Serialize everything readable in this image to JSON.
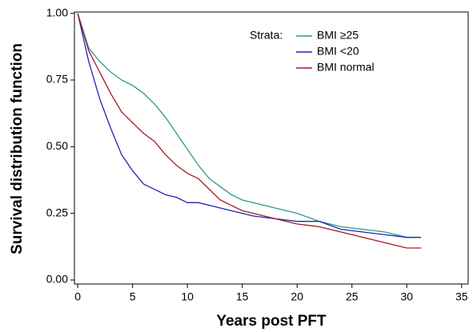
{
  "chart_data": {
    "type": "line",
    "xlabel": "Years post PFT",
    "ylabel": "Survival distribution function",
    "legend_title": "Strata:",
    "legend": "top-right",
    "x": [
      0,
      1,
      2,
      3,
      4,
      5,
      6,
      7,
      8,
      9,
      10,
      11,
      12,
      13,
      14,
      15,
      16,
      18,
      20,
      22,
      24,
      26,
      28,
      30,
      31.3
    ],
    "series": [
      {
        "name": "BMI ≥25",
        "color": "#2e9a8a",
        "values": [
          1.0,
          0.87,
          0.82,
          0.78,
          0.75,
          0.73,
          0.7,
          0.66,
          0.61,
          0.55,
          0.49,
          0.43,
          0.38,
          0.35,
          0.32,
          0.3,
          0.29,
          0.27,
          0.25,
          0.22,
          0.2,
          0.19,
          0.18,
          0.16,
          0.16
        ]
      },
      {
        "name": "BMI <20",
        "color": "#2424b4",
        "values": [
          1.0,
          0.82,
          0.68,
          0.57,
          0.47,
          0.41,
          0.36,
          0.34,
          0.32,
          0.31,
          0.29,
          0.29,
          0.28,
          0.27,
          0.26,
          0.25,
          0.24,
          0.23,
          0.22,
          0.22,
          0.19,
          0.18,
          0.17,
          0.16,
          0.16
        ]
      },
      {
        "name": "BMI normal",
        "color": "#a01c20",
        "values": [
          1.0,
          0.86,
          0.78,
          0.7,
          0.63,
          0.59,
          0.55,
          0.52,
          0.47,
          0.43,
          0.4,
          0.38,
          0.34,
          0.3,
          0.28,
          0.26,
          0.25,
          0.23,
          0.21,
          0.2,
          0.18,
          0.16,
          0.14,
          0.12,
          0.12
        ]
      }
    ],
    "xlim": [
      -0.3,
      35.6
    ],
    "ylim": [
      -0.015,
      1.005
    ],
    "xticks": [
      0,
      5,
      10,
      15,
      20,
      25,
      30,
      35
    ],
    "yticks": [
      {
        "value": 0,
        "label": "0.00"
      },
      {
        "value": 0.25,
        "label": "0.25"
      },
      {
        "value": 0.5,
        "label": "0.50"
      },
      {
        "value": 0.75,
        "label": "0.75"
      },
      {
        "value": 1,
        "label": "1.00"
      }
    ],
    "grid": false
  }
}
